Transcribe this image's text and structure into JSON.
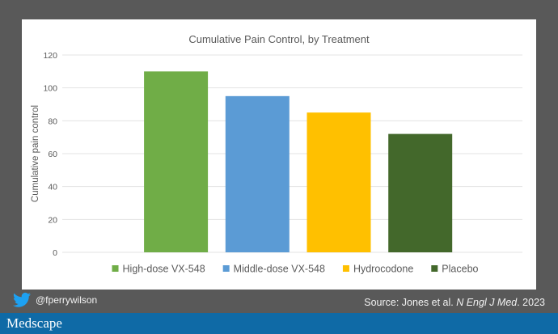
{
  "chart_data": {
    "type": "bar",
    "title": "Cumulative Pain Control, by Treatment",
    "xlabel": "",
    "ylabel": "Cumulative pain control",
    "ylim": [
      0,
      120
    ],
    "yticks": [
      0,
      20,
      40,
      60,
      80,
      100,
      120
    ],
    "ytick_labels": [
      "0",
      "20",
      "40",
      "60",
      "80",
      "100",
      "120"
    ],
    "grid": true,
    "legend_position": "bottom",
    "categories": [
      ""
    ],
    "series": [
      {
        "name": "High-dose VX-548",
        "values": [
          110
        ],
        "color": "#70ad47"
      },
      {
        "name": "Middle-dose VX-548",
        "values": [
          95
        ],
        "color": "#5b9bd5"
      },
      {
        "name": "Hydrocodone",
        "values": [
          85
        ],
        "color": "#ffc000"
      },
      {
        "name": "Placebo",
        "values": [
          72
        ],
        "color": "#43682b"
      }
    ]
  },
  "footer": {
    "twitter_handle": "@fperrywilson",
    "source_prefix": "Source: Jones et al. ",
    "source_journal": "N Engl J Med",
    "source_suffix": ". 2023",
    "brand": "Medscape"
  },
  "colors": {
    "background": "#595959",
    "footer_bar": "#0f6aa6",
    "twitter": "#1da1f2"
  }
}
